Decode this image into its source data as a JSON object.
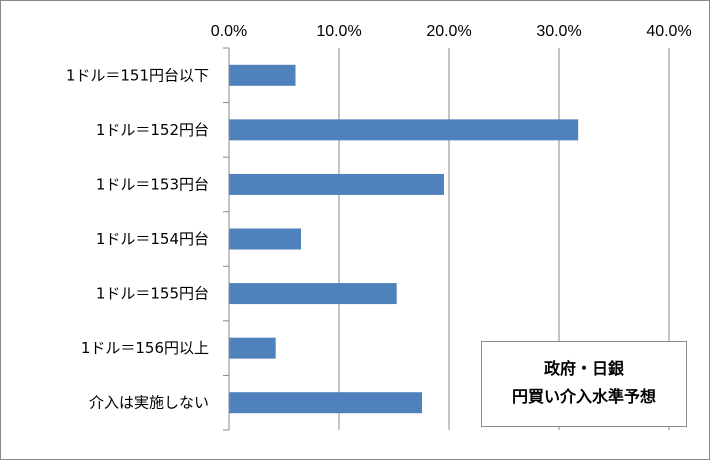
{
  "chart_data": {
    "type": "bar",
    "orientation": "horizontal",
    "categories": [
      "1ドル＝151円台以下",
      "1ドル＝152円台",
      "1ドル＝153円台",
      "1ドル＝154円台",
      "1ドル＝155円台",
      "1ドル＝156円以上",
      "介入は実施しない"
    ],
    "values": [
      6.0,
      31.7,
      19.5,
      6.5,
      15.2,
      4.2,
      17.5
    ],
    "xlim": [
      0,
      40
    ],
    "x_ticks": [
      "0.0%",
      "10.0%",
      "20.0%",
      "30.0%",
      "40.0%"
    ],
    "x_tick_values": [
      0,
      10,
      20,
      30,
      40
    ],
    "axis_position": "top",
    "grid": true,
    "bar_color": "#4f81bd",
    "annotation": [
      "政府・日銀",
      "円買い介入水準予想"
    ]
  }
}
